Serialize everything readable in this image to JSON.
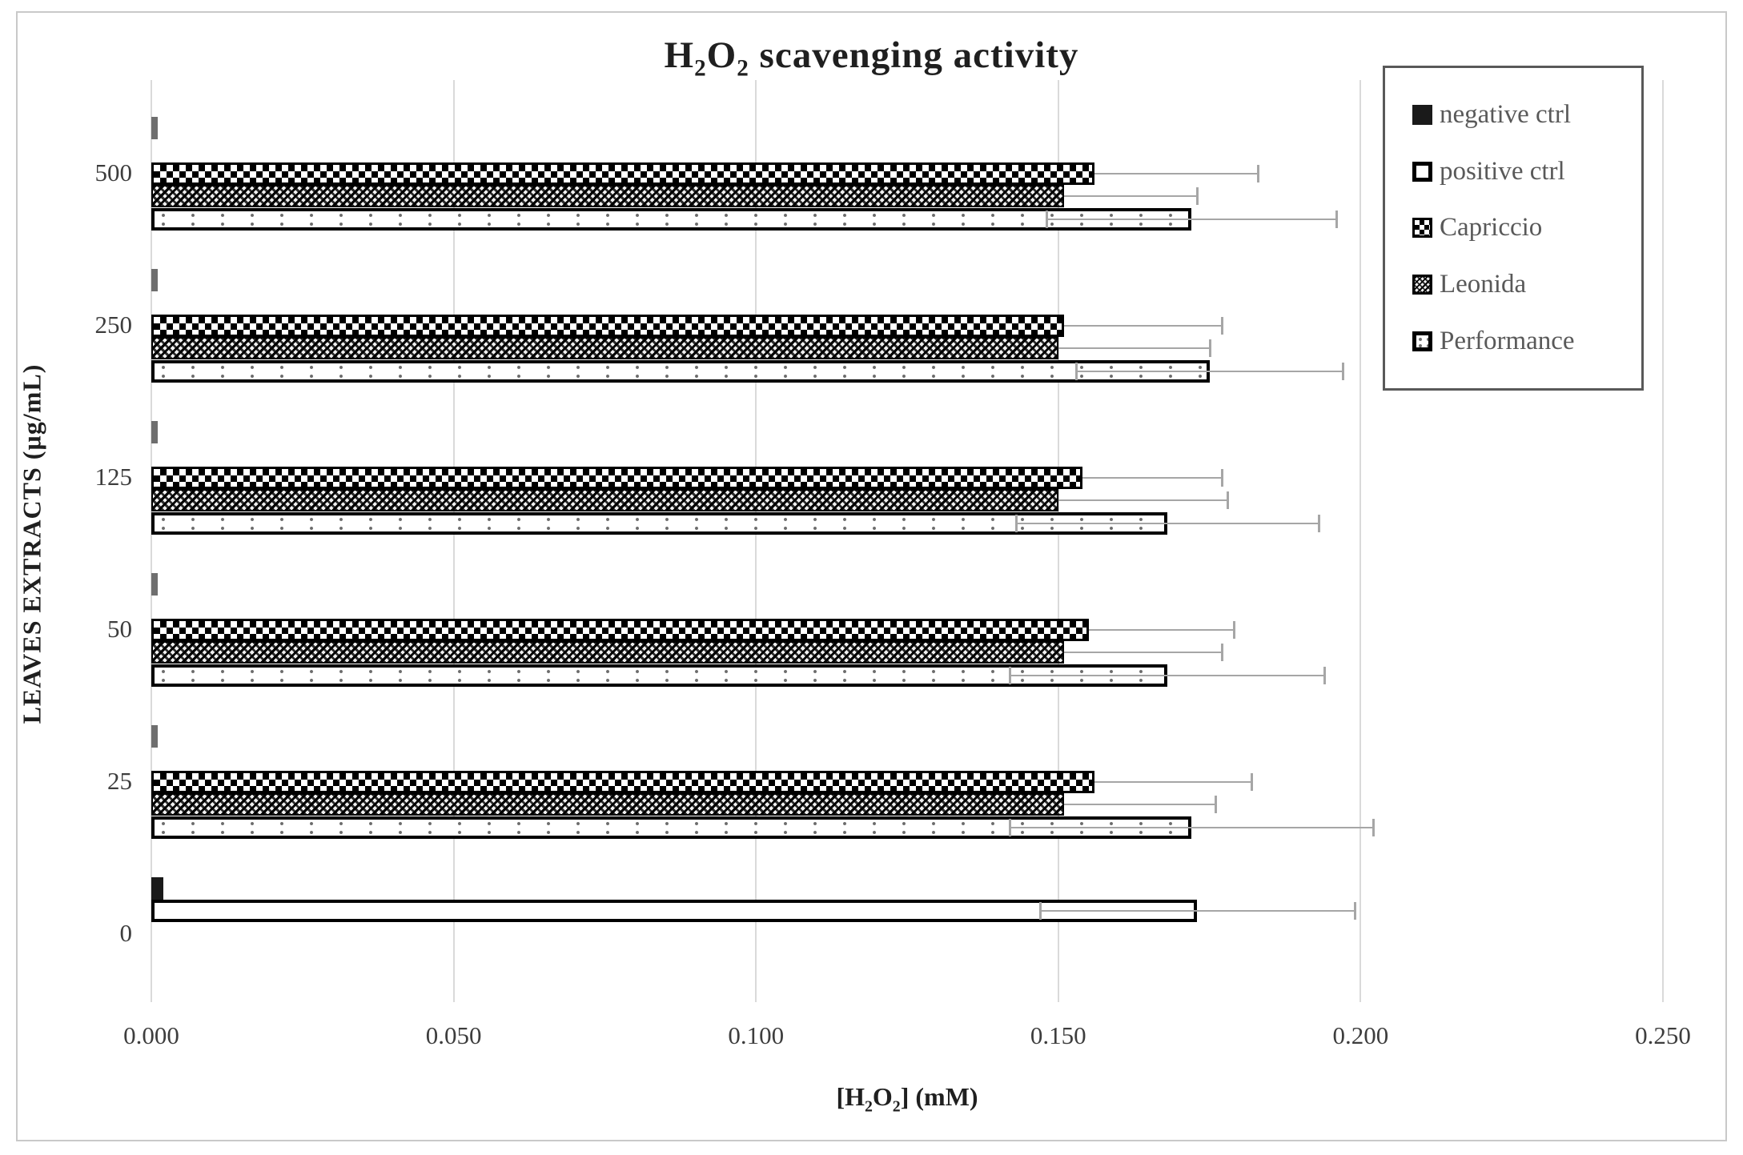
{
  "figure": {
    "title": "H~2~O~2~ scavenging activity"
  },
  "axes": {
    "x_label": "[H~2~O~2~] (mM)",
    "y_label": "LEAVES EXTRACTS (µg/mL)",
    "x_tick_labels": [
      "0.000",
      "0.050",
      "0.100",
      "0.150",
      "0.200",
      "0.250"
    ],
    "x_tick_values": [
      0.0,
      0.05,
      0.1,
      0.15,
      0.2,
      0.25
    ]
  },
  "colors": {
    "gridline": "#dadada",
    "error_bar": "#a6a6a6",
    "axis_text": "#3d3d3d",
    "legend_text": "#595959",
    "title_text": "#1f1f1f",
    "frame_border": "#c9c9c9"
  },
  "chart_data": {
    "type": "bar",
    "orientation": "horizontal",
    "title": "H2O2 scavenging activity",
    "xlabel": "[H2O2] (mM)",
    "ylabel": "LEAVES EXTRACTS (ug/mL)",
    "xlim": [
      0,
      0.25
    ],
    "x_tick_step": 0.05,
    "grid": "vertical",
    "legend_position": "top-right",
    "categories": [
      "500",
      "250",
      "125",
      "50",
      "25",
      "0"
    ],
    "series": [
      {
        "name": "negative ctrl",
        "pattern": "solid-black",
        "values": [
          0.001,
          0.001,
          0.001,
          0.001,
          0.001,
          0.002
        ],
        "errors": [
          null,
          null,
          null,
          null,
          null,
          null
        ],
        "error_style": "none"
      },
      {
        "name": "positive ctrl",
        "pattern": "white-black-border",
        "values": [
          null,
          null,
          null,
          null,
          null,
          0.173
        ],
        "errors": [
          null,
          null,
          null,
          null,
          null,
          0.026
        ],
        "error_style": "both"
      },
      {
        "name": "Capriccio",
        "pattern": "checkerboard",
        "values": [
          0.156,
          0.151,
          0.154,
          0.155,
          0.156,
          null
        ],
        "errors": [
          0.027,
          0.026,
          0.023,
          0.024,
          0.026,
          null
        ],
        "error_style": "plus"
      },
      {
        "name": "Leonida",
        "pattern": "diagonal-trellis",
        "values": [
          0.151,
          0.15,
          0.15,
          0.151,
          0.151,
          null
        ],
        "errors": [
          0.022,
          0.025,
          0.028,
          0.026,
          0.025,
          null
        ],
        "error_style": "plus"
      },
      {
        "name": "Performance",
        "pattern": "dotted-light",
        "values": [
          0.172,
          0.175,
          0.168,
          0.168,
          0.172,
          null
        ],
        "errors": [
          0.024,
          0.022,
          0.025,
          0.026,
          0.03,
          null
        ],
        "error_style": "both"
      }
    ]
  }
}
